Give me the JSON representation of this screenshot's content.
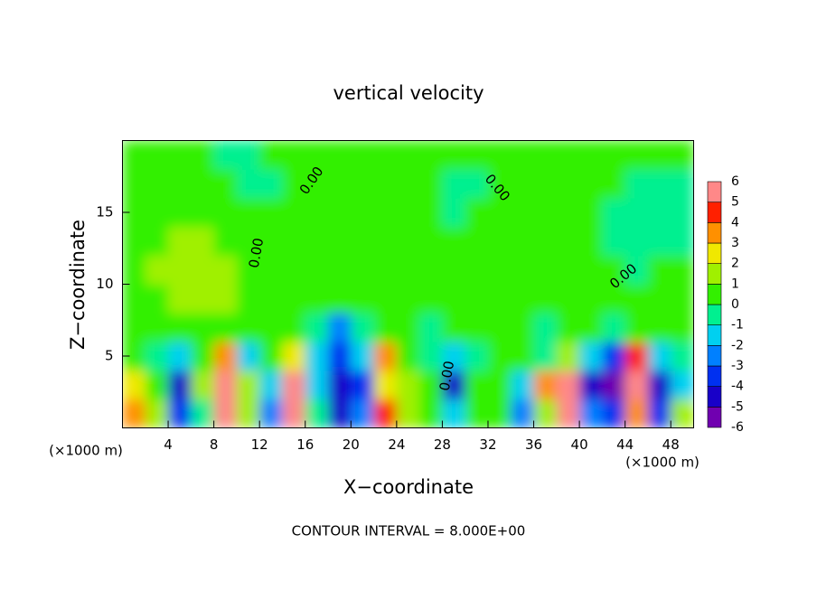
{
  "chart_data": {
    "type": "heatmap",
    "title": "vertical velocity",
    "x_label": "X−coordinate",
    "y_label": "Z−coordinate",
    "x_unit": "(×1000 m)",
    "footer": "CONTOUR INTERVAL = 8.000E+00",
    "contour_label": "0.00",
    "x": [
      1,
      3,
      5,
      7,
      9,
      11,
      13,
      15,
      17,
      19,
      21,
      23,
      25,
      27,
      29,
      31,
      33,
      35,
      37,
      39,
      41,
      43,
      45,
      47,
      49
    ],
    "y": [
      1,
      3,
      5,
      7,
      9,
      11,
      13,
      15,
      17,
      19
    ],
    "values": [
      [
        3,
        1.5,
        -4,
        -1,
        5.5,
        1,
        -3,
        5.5,
        -1,
        -5,
        -3,
        4,
        1,
        0.5,
        -2,
        0,
        0,
        -3,
        1,
        5.5,
        -3,
        -4,
        3,
        -4,
        1
      ],
      [
        2,
        0,
        -5,
        1,
        6,
        1,
        -2,
        6,
        -2,
        -5,
        -4,
        2,
        1,
        0,
        -5,
        0,
        0,
        -2,
        3,
        5,
        -5,
        -6,
        6,
        -5,
        -2
      ],
      [
        0,
        -1,
        -2,
        0.5,
        3,
        -2,
        0,
        2,
        -2,
        -4,
        -2,
        3,
        0,
        -1,
        -2,
        -1,
        0,
        0,
        -1,
        1,
        -2,
        -4,
        4,
        -2,
        -1
      ],
      [
        0.3,
        0.5,
        0.5,
        0.3,
        0.5,
        0.5,
        0.3,
        0.3,
        -1,
        -3,
        -0.5,
        0.5,
        0.3,
        -0.5,
        0.5,
        0.3,
        0.3,
        0.5,
        -0.3,
        0.3,
        0.3,
        -0.3,
        0.3,
        0.3,
        0.3
      ],
      [
        0.6,
        0.8,
        1,
        1,
        1,
        0.8,
        0.5,
        0.5,
        0.3,
        0.3,
        0.3,
        0.4,
        0.3,
        0.3,
        0.3,
        0.3,
        0.3,
        0.3,
        0.3,
        0.3,
        0.3,
        0.3,
        0.3,
        0.3,
        0.3
      ],
      [
        0.8,
        1,
        1.2,
        1.2,
        1,
        0.8,
        0.5,
        0.4,
        0.3,
        0.3,
        0.4,
        0.4,
        0.3,
        0.3,
        0.3,
        0.3,
        0.3,
        0.4,
        0.3,
        0.3,
        0.3,
        0.3,
        -0.3,
        0.3,
        0.3
      ],
      [
        0.7,
        0.9,
        1,
        1,
        0.8,
        0.6,
        0.4,
        0.3,
        0.3,
        0.4,
        0.4,
        0.3,
        0.3,
        0.3,
        0.3,
        0.4,
        0.3,
        0.3,
        0.3,
        0.3,
        0.3,
        -0.3,
        -0.3,
        -0.3,
        -0.3
      ],
      [
        0.5,
        0.6,
        0.7,
        0.6,
        0.5,
        0.4,
        0.3,
        0.3,
        0.4,
        0.4,
        0.3,
        0.3,
        0.3,
        0.3,
        -0.3,
        0.3,
        0.3,
        0.3,
        0.3,
        0.3,
        0.3,
        -0.3,
        -0.3,
        -0.3,
        -0.3
      ],
      [
        0.4,
        0.5,
        0.5,
        0.4,
        0.3,
        -0.3,
        -0.3,
        0.3,
        0.3,
        0.3,
        0.3,
        0.3,
        0.3,
        0.3,
        -0.3,
        -0.3,
        0.3,
        0.3,
        0.3,
        0.3,
        0.3,
        0.3,
        -0.3,
        -0.3,
        -0.3
      ],
      [
        0.4,
        0.4,
        0.4,
        0.3,
        -0.3,
        -0.3,
        0.3,
        0.3,
        0.3,
        0.3,
        0.3,
        0.3,
        0.3,
        0.3,
        0.3,
        0.3,
        0.3,
        0.3,
        0.3,
        0.3,
        0.3,
        0.3,
        0.3,
        0.3,
        0.3
      ]
    ],
    "xlim": [
      0,
      50
    ],
    "ylim": [
      0,
      20
    ],
    "xticks": [
      4,
      8,
      12,
      16,
      20,
      24,
      28,
      32,
      36,
      40,
      44,
      48
    ],
    "yticks": [
      5,
      10,
      15
    ],
    "colorbar": {
      "ticks": [
        -6,
        -5,
        -4,
        -3,
        -2,
        -1,
        0,
        1,
        2,
        3,
        4,
        5,
        6
      ],
      "colors": [
        "#7000b0",
        "#1800c8",
        "#0030f0",
        "#0080ff",
        "#00d0f0",
        "#00f090",
        "#33f000",
        "#a0f000",
        "#f0e800",
        "#ff9000",
        "#ff2000",
        "#ff8888"
      ]
    }
  }
}
